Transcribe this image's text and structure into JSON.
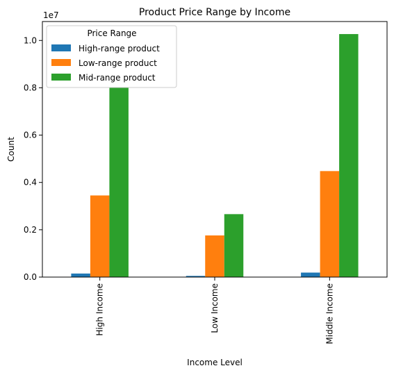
{
  "chart_data": {
    "type": "bar",
    "title": "Product Price Range by Income",
    "xlabel": "Income Level",
    "ylabel": "Count",
    "y_scale_label": "1e7",
    "categories": [
      "High Income",
      "Low Income",
      "Middle Income"
    ],
    "series": [
      {
        "name": "High-range product",
        "color": "#1f77b4",
        "values": [
          150000,
          50000,
          190000
        ]
      },
      {
        "name": "Low-range product",
        "color": "#ff7f0e",
        "values": [
          3450000,
          1760000,
          4480000
        ]
      },
      {
        "name": "Mid-range product",
        "color": "#2ca02c",
        "values": [
          8000000,
          2660000,
          10270000
        ]
      }
    ],
    "ylim": [
      0,
      10800000
    ],
    "y_ticks": [
      0,
      2000000,
      4000000,
      6000000,
      8000000,
      10000000
    ],
    "y_tick_labels": [
      "0.0",
      "0.2",
      "0.4",
      "0.6",
      "0.8",
      "1.0"
    ],
    "legend": {
      "title": "Price Range",
      "position": "top-left"
    },
    "grid": false
  }
}
